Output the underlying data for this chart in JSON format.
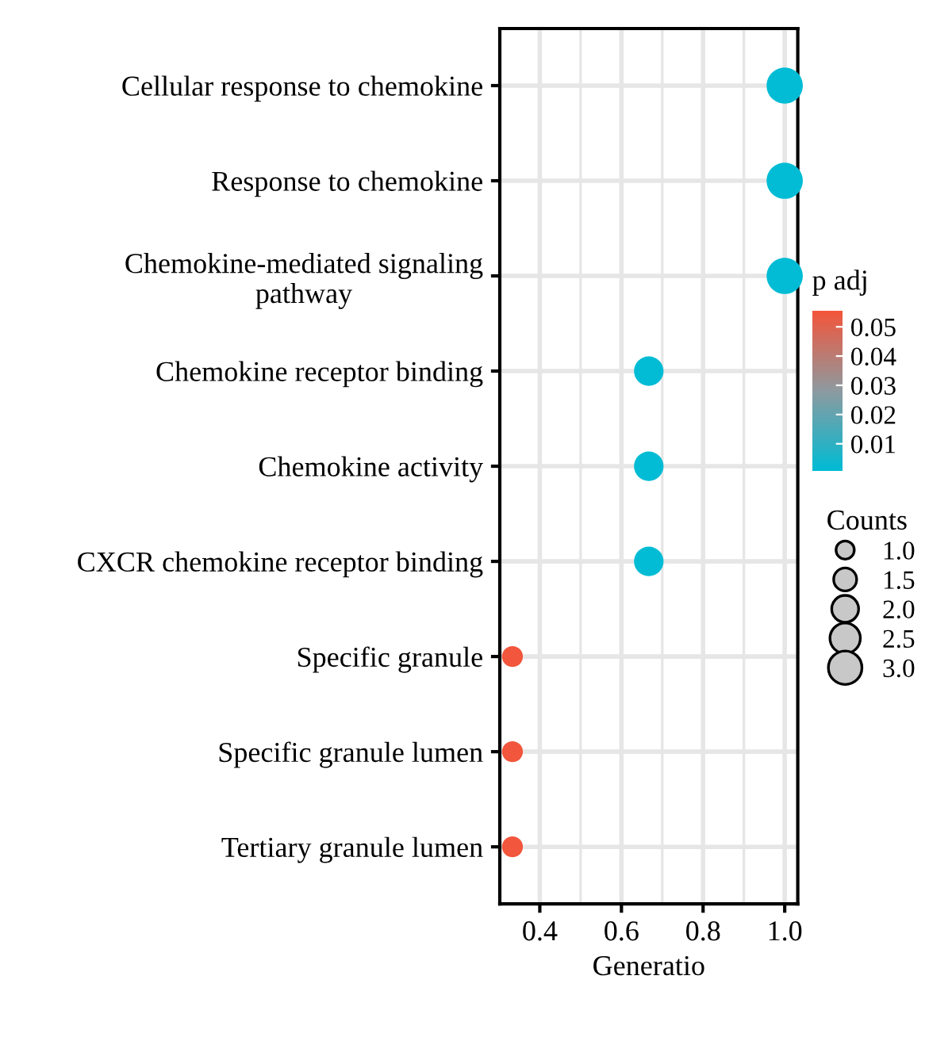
{
  "chart_data": {
    "type": "bubble",
    "xlabel": "Generatio",
    "clabel": "p adj",
    "legend_title": "Counts",
    "categories": [
      "Cellular response to chemokine",
      "Response to chemokine",
      "Chemokine-mediated signaling\npathway",
      "Chemokine receptor binding",
      "Chemokine activity",
      "CXCR chemokine receptor binding",
      "Specific granule",
      "Specific granule lumen",
      "Tertiary granule lumen"
    ],
    "values": [
      1.0,
      1.0,
      1.0,
      0.667,
      0.667,
      0.667,
      0.333,
      0.333,
      0.333
    ],
    "sizes": [
      3,
      3,
      3,
      2,
      2,
      2,
      1,
      1,
      1
    ],
    "size_legend": [
      {
        "value": 1,
        "label": "1.0"
      },
      1.5,
      {
        "value": 2,
        "label": "2.0"
      },
      2.5,
      {
        "value": 3,
        "label": "3.0"
      }
    ],
    "cvalues": [
      0.001,
      0.001,
      0.001,
      0.001,
      0.001,
      0.001,
      0.055,
      0.055,
      0.055
    ],
    "clim": [
      0.0007,
      0.0556
    ],
    "cticks": [
      0.01,
      0.02,
      0.03,
      0.04,
      0.05
    ],
    "xlim": [
      0.302,
      1.032
    ],
    "xticks": [
      0.4,
      0.6,
      0.8,
      {
        "value": 1,
        "label": "1.0"
      }
    ],
    "grid": true,
    "orientation": "horizontal"
  }
}
